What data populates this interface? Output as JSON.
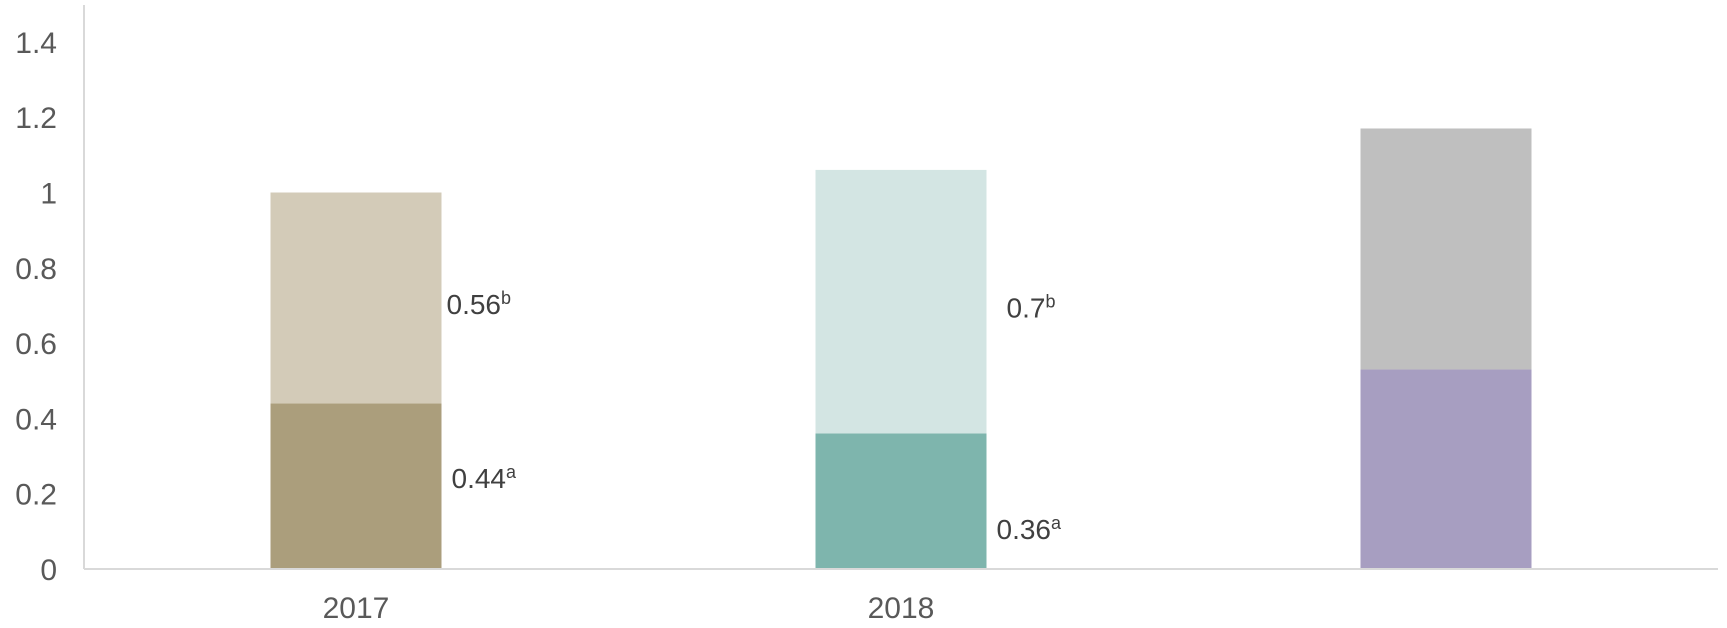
{
  "chart_data": {
    "type": "bar",
    "stacked": true,
    "categories": [
      "2017",
      "2018",
      ""
    ],
    "series": [
      {
        "values": [
          0.44,
          0.36,
          0.53
        ],
        "colors": [
          "#AB9E7C",
          "#7EB5AD",
          "#A79EC1"
        ],
        "labels": [
          "0.44",
          "0.36",
          ""
        ],
        "label_suffixes": [
          "a",
          "a",
          ""
        ]
      },
      {
        "values": [
          0.56,
          0.7,
          0.64
        ],
        "colors": [
          "#D3CBB8",
          "#D3E5E3",
          "#BFBFBF"
        ],
        "labels": [
          "0.56",
          "0.7",
          ""
        ],
        "label_suffixes": [
          "b",
          "b",
          ""
        ]
      }
    ],
    "ylim": [
      0,
      1.5
    ],
    "yticks": [
      "0",
      "0.2",
      "0.4",
      "0.6",
      "0.8",
      "1",
      "1.2",
      "1.4"
    ],
    "ytick_values": [
      0,
      0.2,
      0.4,
      0.6,
      0.8,
      1,
      1.2,
      1.4
    ],
    "grid": false,
    "legend": "none",
    "axis_color": "#D9D9D9"
  }
}
